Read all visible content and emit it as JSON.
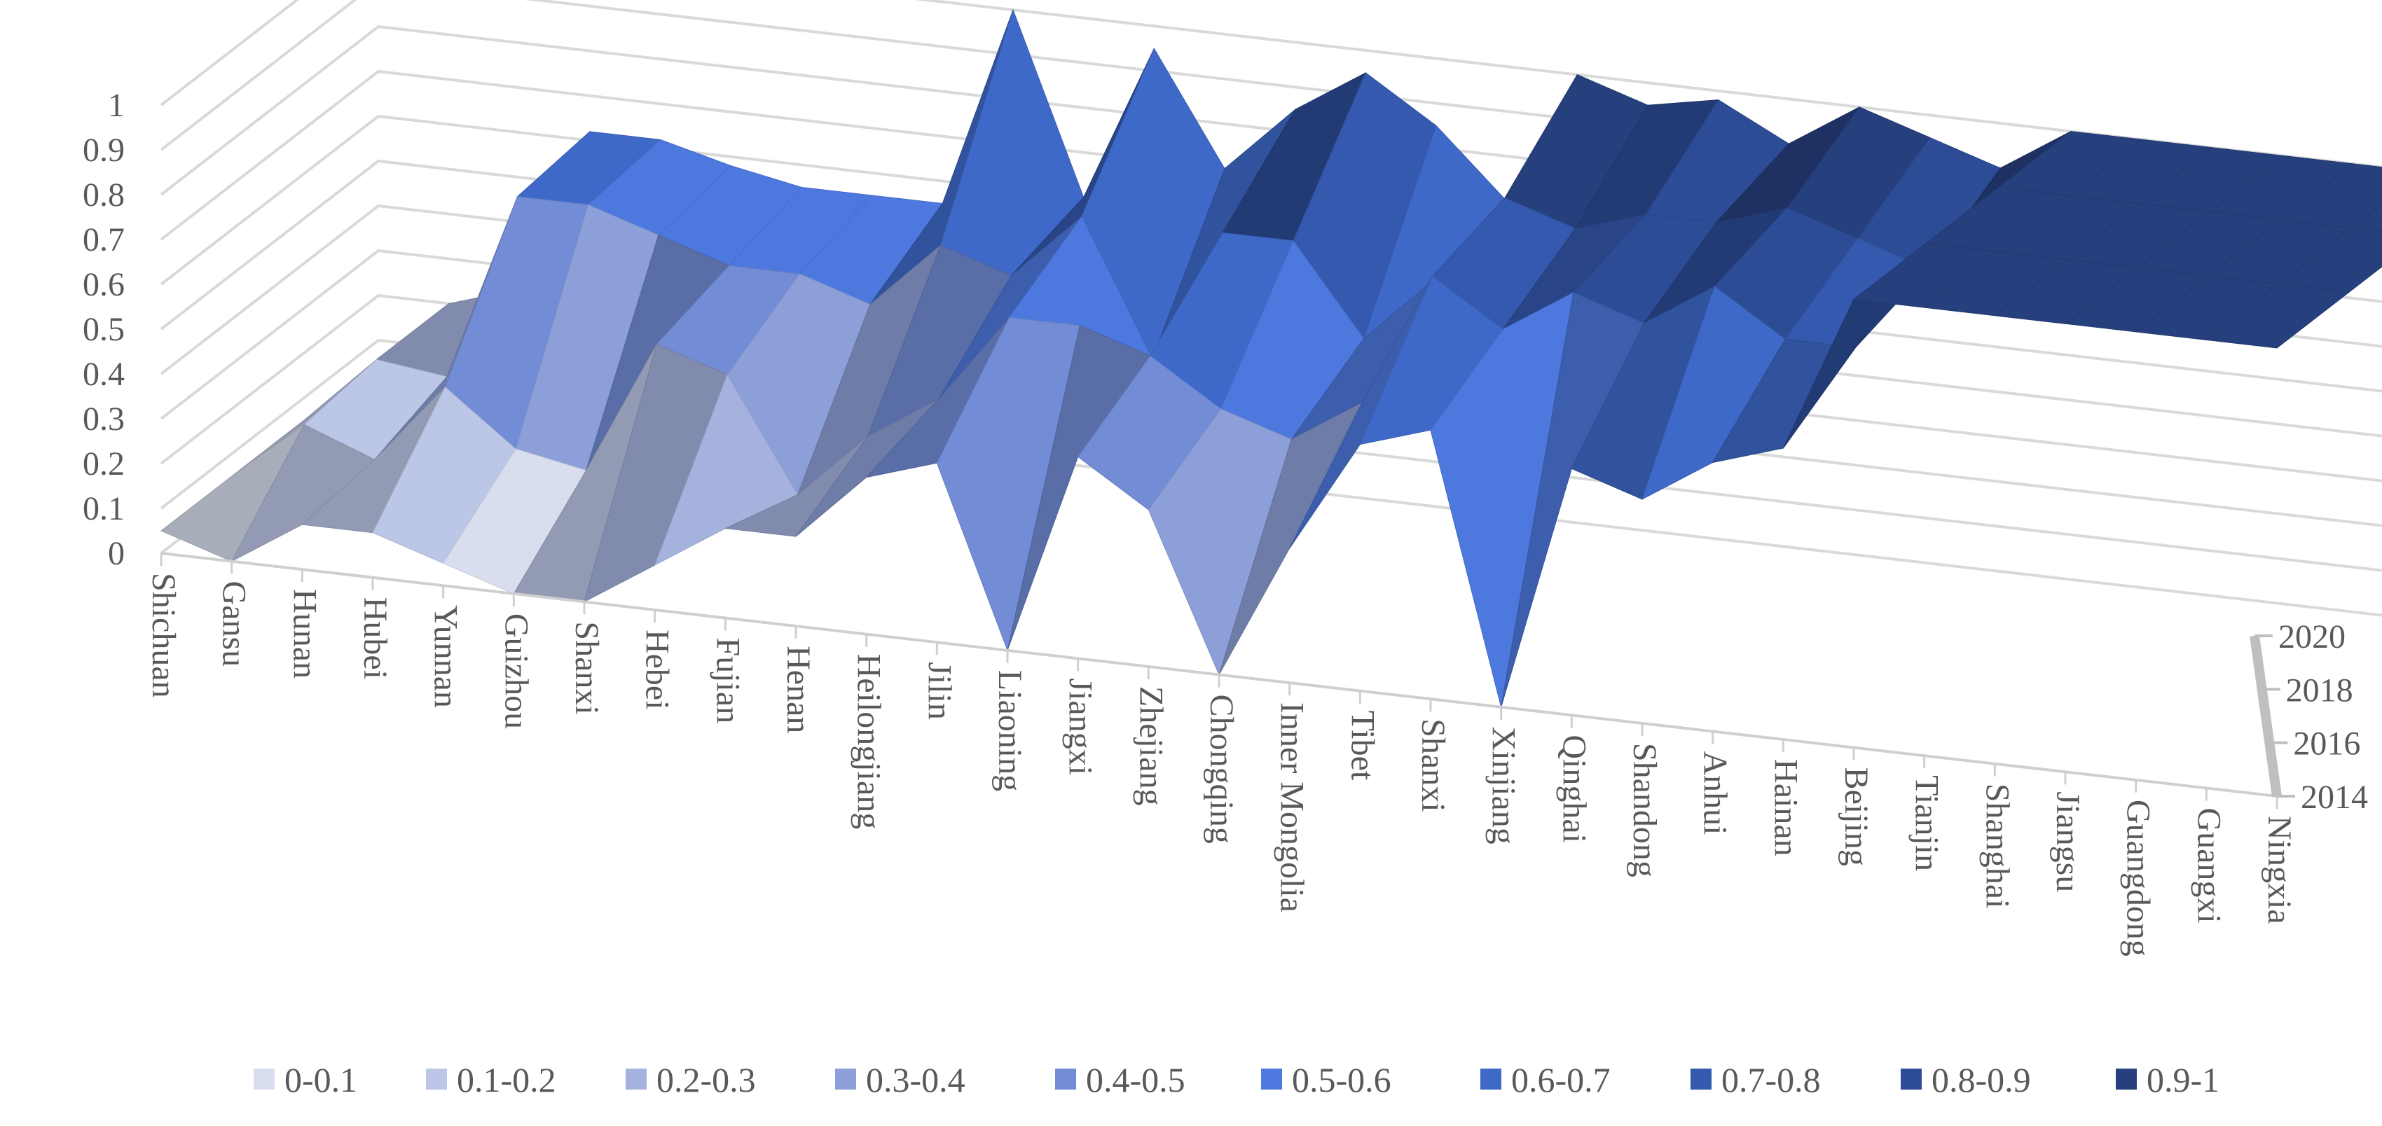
{
  "chart_data": {
    "type": "3d-surface",
    "title": "",
    "categories": [
      "Shichuan",
      "Gansu",
      "Hunan",
      "Hubei",
      "Yunnan",
      "Guizhou",
      "Shanxi",
      "Hebei",
      "Fujian",
      "Henan",
      "Heilongjiang",
      "Jilin",
      "Liaoning",
      "Jiangxi",
      "Zhejiang",
      "Chongqing",
      "Inner Mongolia",
      "Tibet",
      "Shanxi",
      "Xinjiang",
      "Qinghai",
      "Shandong",
      "Anhui",
      "Hainan",
      "Beijing",
      "Tianjin",
      "Shanghai",
      "Jiangsu",
      "Guangdong",
      "Guangxi",
      "Ningxia"
    ],
    "z_labels": [
      "2014",
      "2016",
      "2018",
      "2020"
    ],
    "y_ticks": [
      "0",
      "0.1",
      "0.2",
      "0.3",
      "0.4",
      "0.5",
      "0.6",
      "0.7",
      "0.8",
      "0.9",
      "1"
    ],
    "ylim": [
      0,
      1
    ],
    "series": [
      {
        "name": "2014",
        "values": [
          0.05,
          0.0,
          0.1,
          0.1,
          0.05,
          0.0,
          0.0,
          0.1,
          0.2,
          0.2,
          0.35,
          0.4,
          0.0,
          0.45,
          0.35,
          0.0,
          0.3,
          0.55,
          0.6,
          0.0,
          0.55,
          0.5,
          0.6,
          0.65,
          1,
          1,
          1,
          1,
          1,
          1,
          1
        ]
      },
      {
        "name": "2016",
        "values": [
          0.05,
          0.18,
          0.12,
          0.3,
          0.18,
          0.15,
          0.45,
          0.4,
          0.15,
          0.3,
          0.4,
          0.6,
          0.6,
          0.55,
          0.45,
          0.4,
          0.5,
          0.8,
          0.7,
          0.8,
          0.75,
          0.85,
          0.75,
          0.75,
          1,
          1,
          1,
          1,
          1,
          1,
          1
        ]
      },
      {
        "name": "2018",
        "values": [
          0.05,
          0.2,
          0.18,
          0.6,
          0.6,
          0.55,
          0.5,
          0.5,
          0.45,
          0.6,
          0.55,
          0.7,
          0.4,
          0.7,
          0.7,
          0.5,
          0.65,
          0.85,
          0.8,
          0.85,
          0.85,
          0.9,
          0.85,
          0.8,
          1,
          1,
          1,
          1,
          1,
          1,
          1
        ]
      },
      {
        "name": "2020",
        "values": [
          0.05,
          0.2,
          0.25,
          0.62,
          0.62,
          0.58,
          0.55,
          0.55,
          0.55,
          1.0,
          0.6,
          0.95,
          0.7,
          0.85,
          0.95,
          0.85,
          0.7,
          1.0,
          0.95,
          0.98,
          0.9,
          1.0,
          0.95,
          0.9,
          1,
          1,
          1,
          1,
          1,
          1,
          1
        ]
      }
    ],
    "legend": {
      "position": "bottom",
      "entries": [
        {
          "label": "0-0.1",
          "color": "#d8deee"
        },
        {
          "label": "0.1-0.2",
          "color": "#bcc6e6"
        },
        {
          "label": "0.2-0.3",
          "color": "#a5b2de"
        },
        {
          "label": "0.3-0.4",
          "color": "#8d9fd8"
        },
        {
          "label": "0.4-0.5",
          "color": "#728cd6"
        },
        {
          "label": "0.5-0.6",
          "color": "#4d79de"
        },
        {
          "label": "0.6-0.7",
          "color": "#3f69c8"
        },
        {
          "label": "0.7-0.8",
          "color": "#3559ae"
        },
        {
          "label": "0.8-0.9",
          "color": "#2d4c96"
        },
        {
          "label": "0.9-1",
          "color": "#263f7d"
        }
      ]
    },
    "grid": true
  }
}
